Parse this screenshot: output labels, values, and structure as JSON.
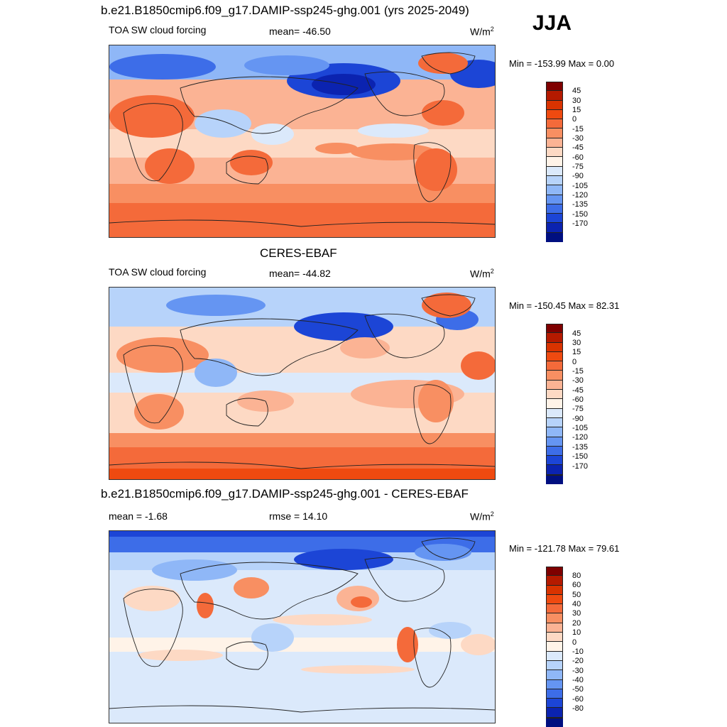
{
  "season": "JJA",
  "panels": [
    {
      "title": "b.e21.B1850cmip6.f09_g17.DAMIP-ssp245-ghg.001 (yrs 2025-2049)",
      "left_label": "TOA SW cloud forcing",
      "center_label": "mean= -46.50",
      "units": "W/m",
      "units_sup": "2",
      "minmax": "Min = -153.99 Max =   0.00"
    },
    {
      "title": "CERES-EBAF",
      "left_label": "TOA SW cloud forcing",
      "center_label": "mean= -44.82",
      "units": "W/m",
      "units_sup": "2",
      "minmax": "Min = -150.45 Max =  82.31"
    },
    {
      "title": "b.e21.B1850cmip6.f09_g17.DAMIP-ssp245-ghg.001 - CERES-EBAF",
      "left_label": "mean =  -1.68",
      "center_label": "rmse =  14.10",
      "units": "W/m",
      "units_sup": "2",
      "minmax": "Min = -121.78 Max =  79.61"
    }
  ],
  "colorbars": {
    "field": {
      "labels": [
        "45",
        "30",
        "15",
        "0",
        "-15",
        "-30",
        "-45",
        "-60",
        "-75",
        "-90",
        "-105",
        "-120",
        "-135",
        "-150",
        "-170"
      ],
      "colors": [
        "#7f0000",
        "#b51a00",
        "#d93300",
        "#ef4a10",
        "#f46a3a",
        "#f88f62",
        "#fbb394",
        "#fdd9c4",
        "#fff3e8",
        "#dbe9fb",
        "#b7d3fa",
        "#8fb7f7",
        "#6595f2",
        "#3d6de8",
        "#1c45d6",
        "#0b23b0",
        "#000f80"
      ]
    },
    "diff": {
      "labels": [
        "80",
        "60",
        "50",
        "40",
        "30",
        "20",
        "10",
        "0",
        "-10",
        "-20",
        "-30",
        "-40",
        "-50",
        "-60",
        "-80"
      ],
      "colors": [
        "#7f0000",
        "#b51a00",
        "#d93300",
        "#ef4a10",
        "#f46a3a",
        "#f88f62",
        "#fbb394",
        "#fdd9c4",
        "#fff3e8",
        "#dbe9fb",
        "#b7d3fa",
        "#8fb7f7",
        "#6595f2",
        "#3d6de8",
        "#1c45d6",
        "#0b23b0",
        "#000f80"
      ]
    }
  },
  "map_colors": {
    "deep_blue": "#1c45d6",
    "mid_blue": "#6595f2",
    "light_blue": "#b7d3fa",
    "pale_blue": "#dbe9fb",
    "pale_orange": "#fdd9c4",
    "light_orange": "#fbb394",
    "orange": "#f88f62",
    "dark_orange": "#f46a3a",
    "red": "#ef4a10"
  }
}
